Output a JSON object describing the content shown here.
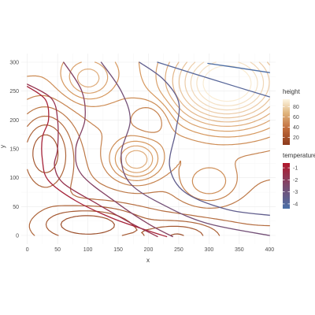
{
  "chart_data": {
    "type": "contour",
    "title": "",
    "xlabel": "x",
    "ylabel": "y",
    "xlim": [
      -10,
      410
    ],
    "ylim": [
      -15,
      315
    ],
    "x_ticks": [
      0,
      50,
      100,
      150,
      200,
      250,
      300,
      350,
      400
    ],
    "y_ticks": [
      0,
      50,
      100,
      150,
      200,
      250,
      300
    ],
    "grid": true,
    "legend_position": "right",
    "legends": [
      {
        "title": "height",
        "labels": [
          "80",
          "60",
          "40",
          "20"
        ],
        "values": [
          80,
          60,
          40,
          20
        ],
        "range": [
          5,
          95
        ],
        "color_low": "#8c3a1c",
        "color_high": "#fdf6e3"
      },
      {
        "title": "temperature",
        "labels": [
          "-1",
          "-2",
          "-3",
          "-4"
        ],
        "values": [
          -1,
          -2,
          -3,
          -4
        ],
        "range": [
          -0.6,
          -4.4
        ],
        "color_high": "#b2182b",
        "color_low": "#4a70a8"
      }
    ],
    "series": [
      {
        "type": "height",
        "levels": [
          10,
          15,
          20,
          25,
          30,
          35,
          40,
          45,
          50,
          55,
          60,
          65,
          70,
          75,
          80,
          85,
          90
        ]
      },
      {
        "type": "temperature",
        "lines": [
          {
            "level": -1.0,
            "points": [
              [
                0,
                258
              ],
              [
                30,
                235
              ],
              [
                35,
                200
              ],
              [
                25,
                170
              ],
              [
                25,
                130
              ],
              [
                35,
                95
              ],
              [
                80,
                60
              ],
              [
                140,
                30
              ],
              [
                200,
                8
              ],
              [
                230,
                -2
              ]
            ]
          },
          {
            "level": -1.6,
            "points": [
              [
                0,
                262
              ],
              [
                40,
                237
              ],
              [
                50,
                200
              ],
              [
                50,
                150
              ],
              [
                45,
                120
              ],
              [
                60,
                90
              ],
              [
                115,
                55
              ],
              [
                170,
                22
              ],
              [
                215,
                -2
              ]
            ]
          },
          {
            "level": -2.2,
            "points": [
              [
                60,
                300
              ],
              [
                90,
                250
              ],
              [
                95,
                200
              ],
              [
                80,
                150
              ],
              [
                90,
                105
              ],
              [
                150,
                55
              ],
              [
                200,
                20
              ],
              [
                240,
                -2
              ]
            ]
          },
          {
            "level": -2.8,
            "points": [
              [
                122,
                300
              ],
              [
                155,
                250
              ],
              [
                170,
                200
              ],
              [
                155,
                140
              ],
              [
                170,
                90
              ],
              [
                230,
                50
              ],
              [
                300,
                20
              ],
              [
                400,
                0
              ]
            ]
          },
          {
            "level": -3.5,
            "points": [
              [
                185,
                300
              ],
              [
                225,
                270
              ],
              [
                250,
                230
              ],
              [
                245,
                180
              ],
              [
                235,
                120
              ],
              [
                260,
                75
              ],
              [
                330,
                45
              ],
              [
                400,
                35
              ]
            ]
          },
          {
            "level": -3.9,
            "points": [
              [
                215,
                300
              ],
              [
                300,
                272
              ],
              [
                400,
                240
              ]
            ]
          },
          {
            "level": -4.3,
            "points": [
              [
                298,
                298
              ],
              [
                350,
                290
              ],
              [
                400,
                282
              ]
            ]
          }
        ]
      }
    ]
  }
}
